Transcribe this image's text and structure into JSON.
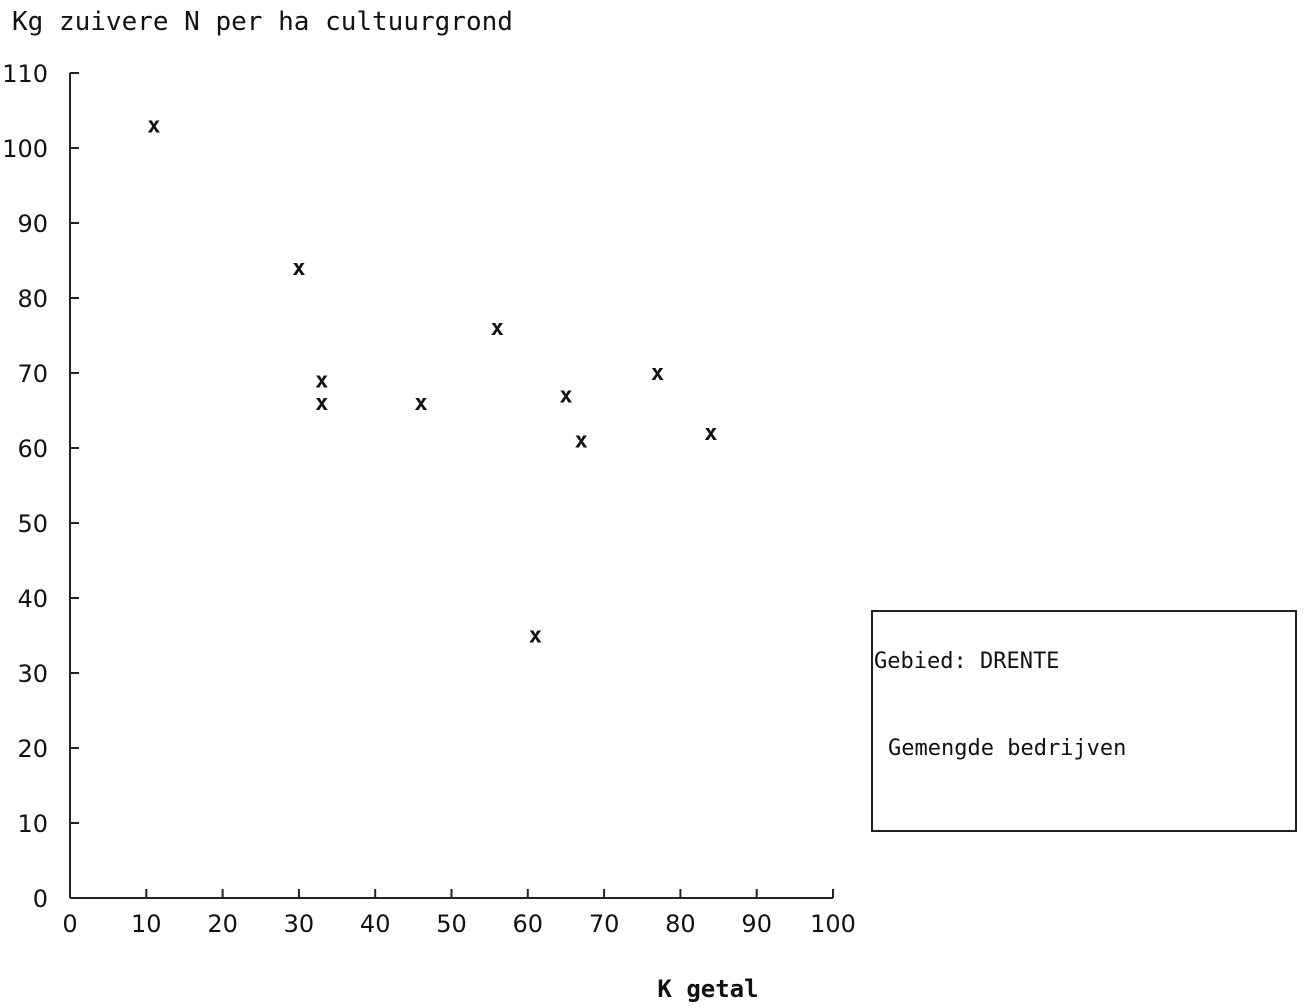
{
  "chart_data": {
    "type": "scatter",
    "ylabel": "Kg zuivere N per ha cultuurgrond",
    "xlabel": "K getal",
    "xlim": [
      0,
      100
    ],
    "ylim": [
      0,
      110
    ],
    "xticks": [
      "0",
      "10",
      "20",
      "30",
      "40",
      "50",
      "60",
      "70",
      "80",
      "90",
      "100"
    ],
    "yticks": [
      "0",
      "10",
      "20",
      "30",
      "40",
      "50",
      "60",
      "70",
      "80",
      "90",
      "100",
      "110"
    ],
    "marker_label": "x",
    "grid": false,
    "points": [
      {
        "x": 11,
        "y": 103
      },
      {
        "x": 30,
        "y": 84
      },
      {
        "x": 56,
        "y": 76
      },
      {
        "x": 33,
        "y": 69
      },
      {
        "x": 33,
        "y": 66
      },
      {
        "x": 46,
        "y": 66
      },
      {
        "x": 65,
        "y": 67
      },
      {
        "x": 67,
        "y": 61
      },
      {
        "x": 77,
        "y": 70
      },
      {
        "x": 84,
        "y": 62
      },
      {
        "x": 61,
        "y": 35
      }
    ],
    "legend": {
      "placement": "right",
      "line1": "Gebied: DRENTE",
      "line2": "Gemengde bedrijven"
    }
  }
}
